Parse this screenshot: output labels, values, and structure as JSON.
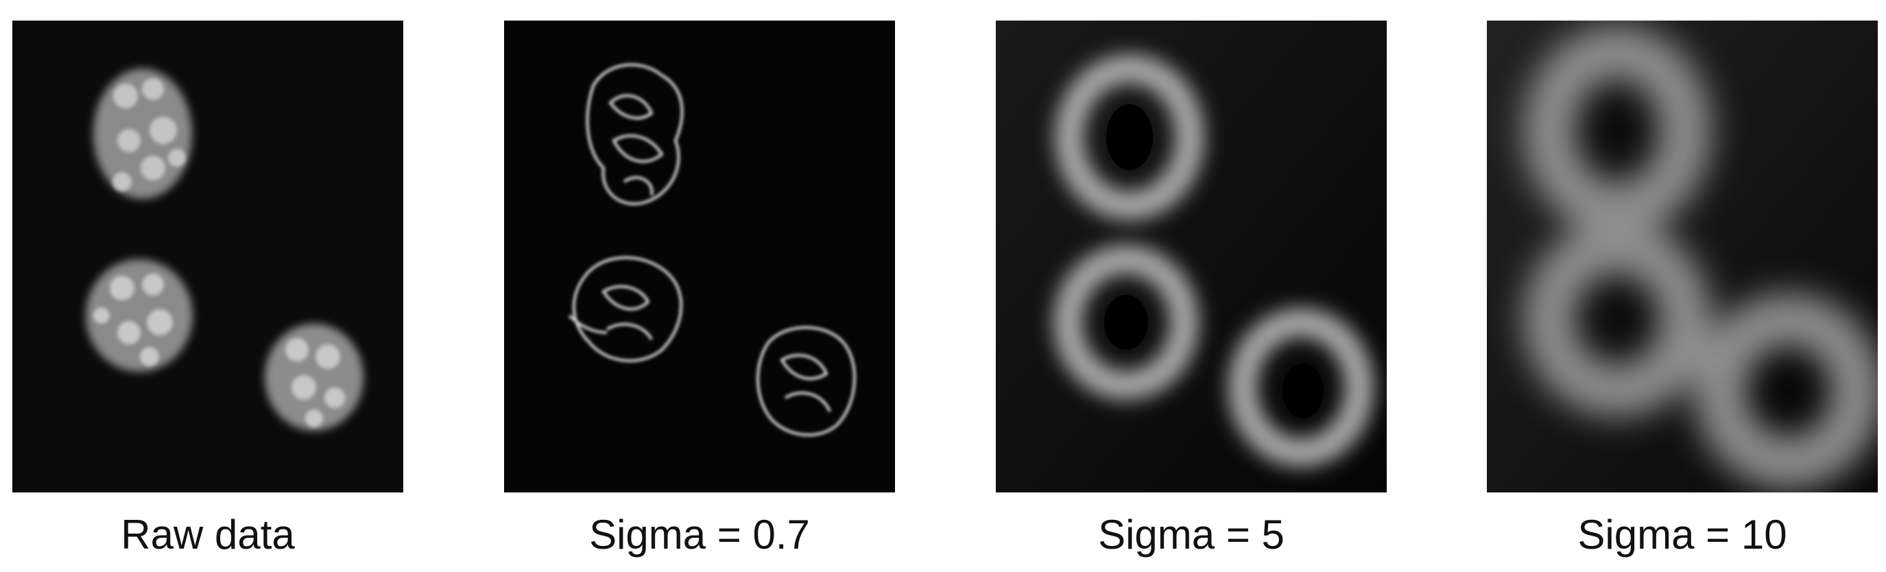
{
  "panels": [
    {
      "caption": "Raw data"
    },
    {
      "caption": "Sigma = 0.7"
    },
    {
      "caption": "Sigma = 5"
    },
    {
      "caption": "Sigma = 10"
    }
  ]
}
